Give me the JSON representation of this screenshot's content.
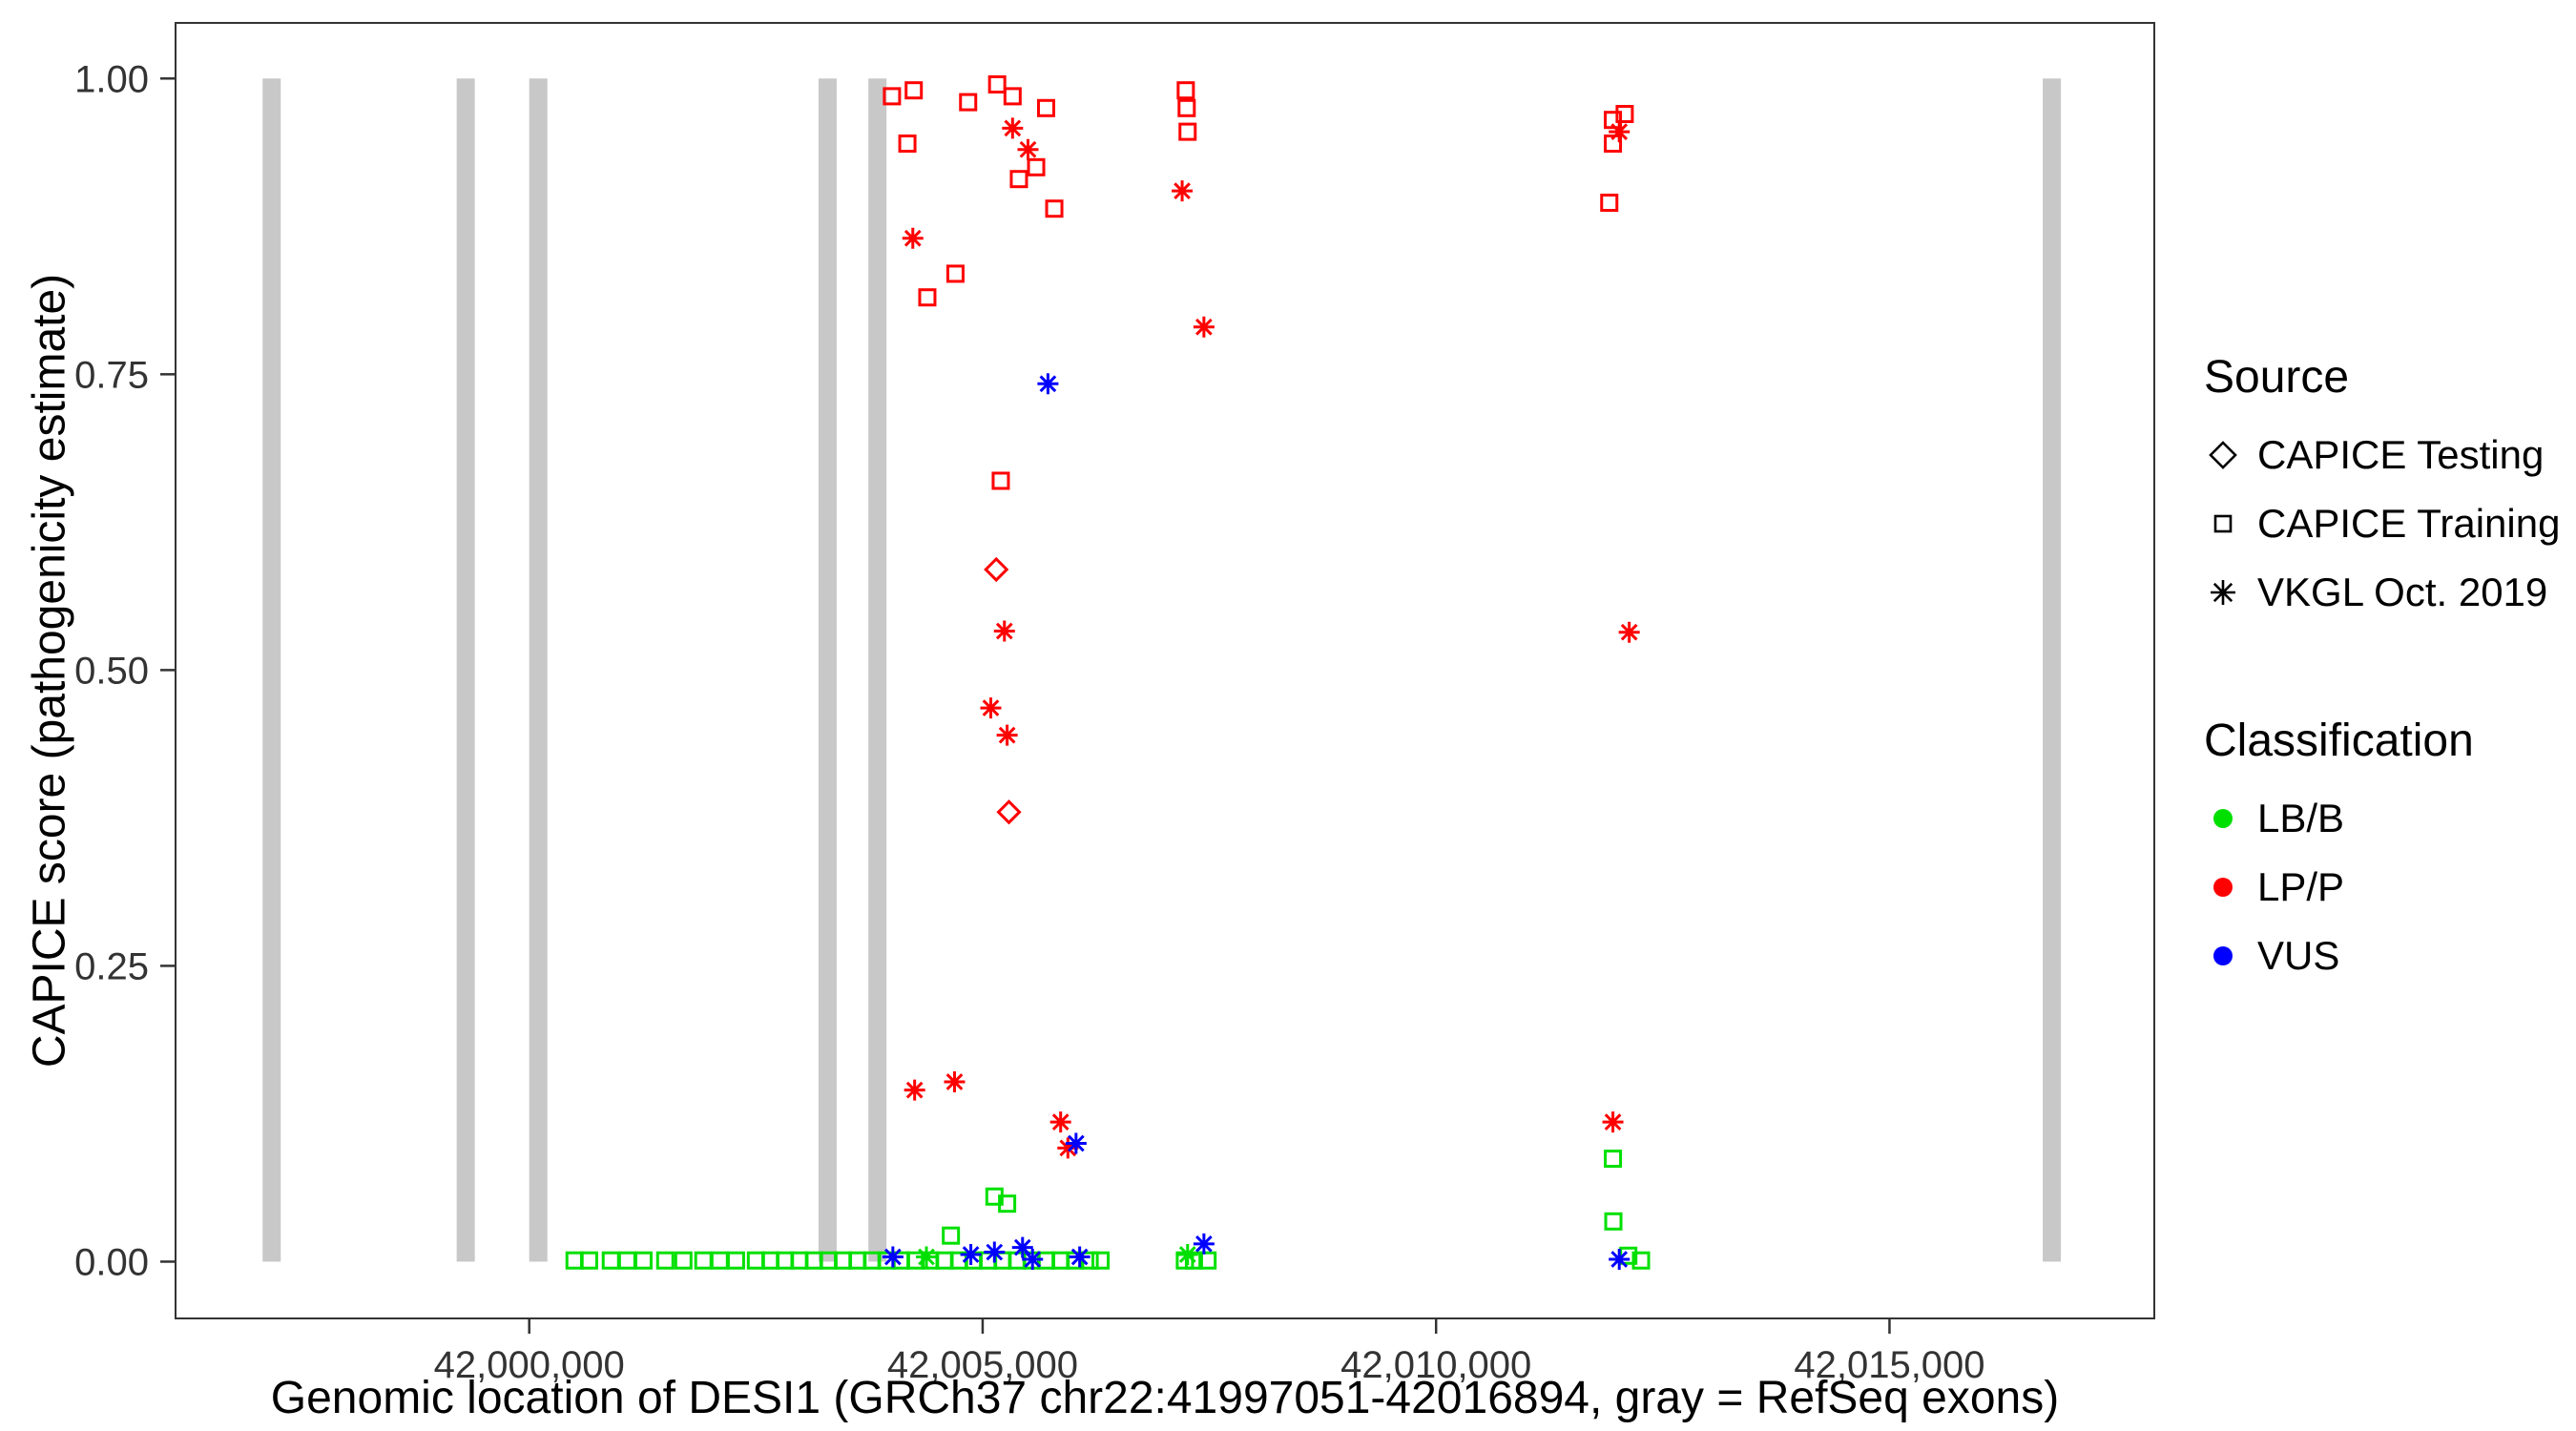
{
  "figure": {
    "background": "#FFFFFF",
    "panel_border_color": "#333333",
    "tick_text_color": "#333333"
  },
  "x_axis": {
    "title": "Genomic location of DESI1 (GRCh37 chr22:41997051-42016894, gray = RefSeq exons)"
  },
  "y_axis": {
    "title": "CAPICE score (pathogenicity estimate)"
  },
  "legend": {
    "source": {
      "title": "Source",
      "items": [
        {
          "label": "CAPICE Testing",
          "shape": "diamond"
        },
        {
          "label": "CAPICE Training",
          "shape": "square"
        },
        {
          "label": "VKGL Oct. 2019",
          "shape": "asterisk"
        }
      ]
    },
    "classification": {
      "title": "Classification",
      "items": [
        {
          "label": "LB/B",
          "color": "#00E000"
        },
        {
          "label": "LP/P",
          "color": "#FF0000"
        },
        {
          "label": "VUS",
          "color": "#0000FF"
        }
      ]
    }
  },
  "chart_data": {
    "type": "scatter",
    "title": "",
    "xlabel": "Genomic location of DESI1 (GRCh37 chr22:41997051-42016894, gray = RefSeq exons)",
    "ylabel": "CAPICE score (pathogenicity estimate)",
    "x_range": [
      41996100,
      42017920
    ],
    "y_range": [
      -0.048,
      1.047
    ],
    "x_ticks": [
      {
        "value": 42000000,
        "label": "42,000,000"
      },
      {
        "value": 42005000,
        "label": "42,005,000"
      },
      {
        "value": 42010000,
        "label": "42,010,000"
      },
      {
        "value": 42015000,
        "label": "42,015,000"
      }
    ],
    "y_ticks": [
      {
        "value": 0.0,
        "label": "0.00"
      },
      {
        "value": 0.25,
        "label": "0.25"
      },
      {
        "value": 0.5,
        "label": "0.50"
      },
      {
        "value": 0.75,
        "label": "0.75"
      },
      {
        "value": 1.0,
        "label": "1.00"
      }
    ],
    "exon_color": "#C8C8C8",
    "exons": [
      [
        41997060,
        41997260
      ],
      [
        41999200,
        41999400
      ],
      [
        42000000,
        42000200
      ],
      [
        42003190,
        42003390
      ],
      [
        42003740,
        42003940
      ],
      [
        42016690,
        42016890
      ]
    ],
    "points": [
      {
        "x": 42000500,
        "y": 0.001,
        "source": "CAPICE Training",
        "class": "LB/B"
      },
      {
        "x": 42000660,
        "y": 0.001,
        "source": "CAPICE Training",
        "class": "LB/B"
      },
      {
        "x": 42000900,
        "y": 0.001,
        "source": "CAPICE Training",
        "class": "LB/B"
      },
      {
        "x": 42001080,
        "y": 0.001,
        "source": "CAPICE Training",
        "class": "LB/B"
      },
      {
        "x": 42001260,
        "y": 0.001,
        "source": "CAPICE Training",
        "class": "LB/B"
      },
      {
        "x": 42001500,
        "y": 0.001,
        "source": "CAPICE Training",
        "class": "LB/B"
      },
      {
        "x": 42001700,
        "y": 0.001,
        "source": "CAPICE Training",
        "class": "LB/B"
      },
      {
        "x": 42001920,
        "y": 0.001,
        "source": "CAPICE Training",
        "class": "LB/B"
      },
      {
        "x": 42002100,
        "y": 0.001,
        "source": "CAPICE Training",
        "class": "LB/B"
      },
      {
        "x": 42002280,
        "y": 0.001,
        "source": "CAPICE Training",
        "class": "LB/B"
      },
      {
        "x": 42002500,
        "y": 0.001,
        "source": "CAPICE Training",
        "class": "LB/B"
      },
      {
        "x": 42002660,
        "y": 0.001,
        "source": "CAPICE Training",
        "class": "LB/B"
      },
      {
        "x": 42002820,
        "y": 0.001,
        "source": "CAPICE Training",
        "class": "LB/B"
      },
      {
        "x": 42002980,
        "y": 0.001,
        "source": "CAPICE Training",
        "class": "LB/B"
      },
      {
        "x": 42003140,
        "y": 0.001,
        "source": "CAPICE Training",
        "class": "LB/B"
      },
      {
        "x": 42003300,
        "y": 0.001,
        "source": "CAPICE Training",
        "class": "LB/B"
      },
      {
        "x": 42003460,
        "y": 0.001,
        "source": "CAPICE Training",
        "class": "LB/B"
      },
      {
        "x": 42003620,
        "y": 0.001,
        "source": "CAPICE Training",
        "class": "LB/B"
      },
      {
        "x": 42003780,
        "y": 0.001,
        "source": "CAPICE Training",
        "class": "LB/B"
      },
      {
        "x": 42003940,
        "y": 0.001,
        "source": "CAPICE Training",
        "class": "LB/B"
      },
      {
        "x": 42004100,
        "y": 0.001,
        "source": "CAPICE Training",
        "class": "LB/B"
      },
      {
        "x": 42004260,
        "y": 0.001,
        "source": "CAPICE Training",
        "class": "LB/B"
      },
      {
        "x": 42004420,
        "y": 0.001,
        "source": "CAPICE Training",
        "class": "LB/B"
      },
      {
        "x": 42004580,
        "y": 0.001,
        "source": "CAPICE Training",
        "class": "LB/B"
      },
      {
        "x": 42004740,
        "y": 0.001,
        "source": "CAPICE Training",
        "class": "LB/B"
      },
      {
        "x": 42004900,
        "y": 0.001,
        "source": "CAPICE Training",
        "class": "LB/B"
      },
      {
        "x": 42005060,
        "y": 0.001,
        "source": "CAPICE Training",
        "class": "LB/B"
      },
      {
        "x": 42005220,
        "y": 0.001,
        "source": "CAPICE Training",
        "class": "LB/B"
      },
      {
        "x": 42005380,
        "y": 0.001,
        "source": "CAPICE Training",
        "class": "LB/B"
      },
      {
        "x": 42005540,
        "y": 0.001,
        "source": "CAPICE Training",
        "class": "LB/B"
      },
      {
        "x": 42005700,
        "y": 0.001,
        "source": "CAPICE Training",
        "class": "LB/B"
      },
      {
        "x": 42005860,
        "y": 0.001,
        "source": "CAPICE Training",
        "class": "LB/B"
      },
      {
        "x": 42006020,
        "y": 0.001,
        "source": "CAPICE Training",
        "class": "LB/B"
      },
      {
        "x": 42006180,
        "y": 0.001,
        "source": "CAPICE Training",
        "class": "LB/B"
      },
      {
        "x": 42006300,
        "y": 0.001,
        "source": "CAPICE Training",
        "class": "LB/B"
      },
      {
        "x": 42007230,
        "y": 0.001,
        "source": "CAPICE Training",
        "class": "LB/B"
      },
      {
        "x": 42007330,
        "y": 0.001,
        "source": "CAPICE Training",
        "class": "LB/B"
      },
      {
        "x": 42007480,
        "y": 0.001,
        "source": "CAPICE Training",
        "class": "LB/B"
      },
      {
        "x": 42012120,
        "y": 0.005,
        "source": "CAPICE Training",
        "class": "LB/B"
      },
      {
        "x": 42012260,
        "y": 0.001,
        "source": "CAPICE Training",
        "class": "LB/B"
      },
      {
        "x": 42004650,
        "y": 0.022,
        "source": "CAPICE Training",
        "class": "LB/B"
      },
      {
        "x": 42005130,
        "y": 0.055,
        "source": "CAPICE Training",
        "class": "LB/B"
      },
      {
        "x": 42005270,
        "y": 0.049,
        "source": "CAPICE Training",
        "class": "LB/B"
      },
      {
        "x": 42011950,
        "y": 0.087,
        "source": "CAPICE Training",
        "class": "LB/B"
      },
      {
        "x": 42011955,
        "y": 0.034,
        "source": "CAPICE Training",
        "class": "LB/B"
      },
      {
        "x": 42004380,
        "y": 0.004,
        "source": "VKGL Oct. 2019",
        "class": "LB/B"
      },
      {
        "x": 42007260,
        "y": 0.006,
        "source": "VKGL Oct. 2019",
        "class": "LB/B"
      },
      {
        "x": 42004000,
        "y": 0.985,
        "source": "CAPICE Training",
        "class": "LP/P"
      },
      {
        "x": 42004240,
        "y": 0.99,
        "source": "CAPICE Training",
        "class": "LP/P"
      },
      {
        "x": 42004170,
        "y": 0.945,
        "source": "CAPICE Training",
        "class": "LP/P"
      },
      {
        "x": 42004390,
        "y": 0.815,
        "source": "CAPICE Training",
        "class": "LP/P"
      },
      {
        "x": 42004700,
        "y": 0.835,
        "source": "CAPICE Training",
        "class": "LP/P"
      },
      {
        "x": 42004840,
        "y": 0.98,
        "source": "CAPICE Training",
        "class": "LP/P"
      },
      {
        "x": 42005160,
        "y": 0.995,
        "source": "CAPICE Training",
        "class": "LP/P"
      },
      {
        "x": 42005330,
        "y": 0.985,
        "source": "CAPICE Training",
        "class": "LP/P"
      },
      {
        "x": 42005400,
        "y": 0.915,
        "source": "CAPICE Training",
        "class": "LP/P"
      },
      {
        "x": 42005590,
        "y": 0.925,
        "source": "CAPICE Training",
        "class": "LP/P"
      },
      {
        "x": 42005700,
        "y": 0.975,
        "source": "CAPICE Training",
        "class": "LP/P"
      },
      {
        "x": 42005790,
        "y": 0.89,
        "source": "CAPICE Training",
        "class": "LP/P"
      },
      {
        "x": 42005200,
        "y": 0.66,
        "source": "CAPICE Training",
        "class": "LP/P"
      },
      {
        "x": 42007240,
        "y": 0.99,
        "source": "CAPICE Training",
        "class": "LP/P"
      },
      {
        "x": 42007250,
        "y": 0.975,
        "source": "CAPICE Training",
        "class": "LP/P"
      },
      {
        "x": 42007260,
        "y": 0.955,
        "source": "CAPICE Training",
        "class": "LP/P"
      },
      {
        "x": 42011950,
        "y": 0.965,
        "source": "CAPICE Training",
        "class": "LP/P"
      },
      {
        "x": 42011950,
        "y": 0.945,
        "source": "CAPICE Training",
        "class": "LP/P"
      },
      {
        "x": 42012080,
        "y": 0.97,
        "source": "CAPICE Training",
        "class": "LP/P"
      },
      {
        "x": 42011910,
        "y": 0.895,
        "source": "CAPICE Training",
        "class": "LP/P"
      },
      {
        "x": 42005150,
        "y": 0.585,
        "source": "CAPICE Testing",
        "class": "LP/P"
      },
      {
        "x": 42005290,
        "y": 0.38,
        "source": "CAPICE Testing",
        "class": "LP/P"
      },
      {
        "x": 42004230,
        "y": 0.865,
        "source": "VKGL Oct. 2019",
        "class": "LP/P"
      },
      {
        "x": 42005330,
        "y": 0.958,
        "source": "VKGL Oct. 2019",
        "class": "LP/P"
      },
      {
        "x": 42005500,
        "y": 0.94,
        "source": "VKGL Oct. 2019",
        "class": "LP/P"
      },
      {
        "x": 42007200,
        "y": 0.905,
        "source": "VKGL Oct. 2019",
        "class": "LP/P"
      },
      {
        "x": 42007440,
        "y": 0.79,
        "source": "VKGL Oct. 2019",
        "class": "LP/P"
      },
      {
        "x": 42005240,
        "y": 0.533,
        "source": "VKGL Oct. 2019",
        "class": "LP/P"
      },
      {
        "x": 42005090,
        "y": 0.468,
        "source": "VKGL Oct. 2019",
        "class": "LP/P"
      },
      {
        "x": 42005270,
        "y": 0.445,
        "source": "VKGL Oct. 2019",
        "class": "LP/P"
      },
      {
        "x": 42004250,
        "y": 0.145,
        "source": "VKGL Oct. 2019",
        "class": "LP/P"
      },
      {
        "x": 42004690,
        "y": 0.152,
        "source": "VKGL Oct. 2019",
        "class": "LP/P"
      },
      {
        "x": 42005860,
        "y": 0.118,
        "source": "VKGL Oct. 2019",
        "class": "LP/P"
      },
      {
        "x": 42005940,
        "y": 0.096,
        "source": "VKGL Oct. 2019",
        "class": "LP/P"
      },
      {
        "x": 42011950,
        "y": 0.118,
        "source": "VKGL Oct. 2019",
        "class": "LP/P"
      },
      {
        "x": 42012130,
        "y": 0.532,
        "source": "VKGL Oct. 2019",
        "class": "LP/P"
      },
      {
        "x": 42012020,
        "y": 0.955,
        "source": "VKGL Oct. 2019",
        "class": "LP/P"
      },
      {
        "x": 42005720,
        "y": 0.742,
        "source": "VKGL Oct. 2019",
        "class": "VUS"
      },
      {
        "x": 42006030,
        "y": 0.1,
        "source": "VKGL Oct. 2019",
        "class": "VUS"
      },
      {
        "x": 42004010,
        "y": 0.004,
        "source": "VKGL Oct. 2019",
        "class": "VUS"
      },
      {
        "x": 42004870,
        "y": 0.006,
        "source": "VKGL Oct. 2019",
        "class": "VUS"
      },
      {
        "x": 42005130,
        "y": 0.008,
        "source": "VKGL Oct. 2019",
        "class": "VUS"
      },
      {
        "x": 42005440,
        "y": 0.012,
        "source": "VKGL Oct. 2019",
        "class": "VUS"
      },
      {
        "x": 42005550,
        "y": 0.002,
        "source": "VKGL Oct. 2019",
        "class": "VUS"
      },
      {
        "x": 42006070,
        "y": 0.004,
        "source": "VKGL Oct. 2019",
        "class": "VUS"
      },
      {
        "x": 42007440,
        "y": 0.015,
        "source": "VKGL Oct. 2019",
        "class": "VUS"
      },
      {
        "x": 42012020,
        "y": 0.002,
        "source": "VKGL Oct. 2019",
        "class": "VUS"
      }
    ]
  }
}
